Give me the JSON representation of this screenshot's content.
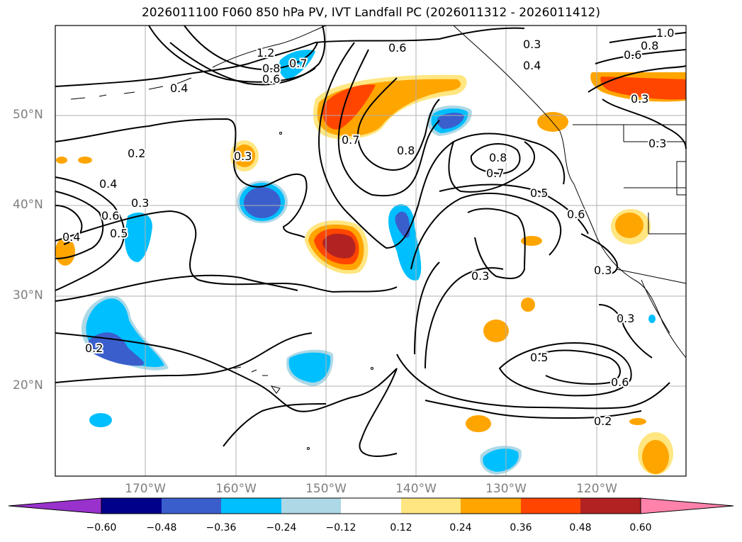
{
  "title": "2026011100 F060 850 hPa PV, IVT Landfall PC (2026011312 - 2026011412)",
  "axes": {
    "lat_labels": [
      "50°N",
      "40°N",
      "30°N",
      "20°N"
    ],
    "lon_labels": [
      "170°W",
      "160°W",
      "150°W",
      "140°W",
      "130°W",
      "120°W"
    ]
  },
  "colorbar": {
    "ticks": [
      "−0.60",
      "−0.48",
      "−0.36",
      "−0.24",
      "−0.12",
      "0.12",
      "0.24",
      "0.36",
      "0.48",
      "0.60"
    ],
    "colors": [
      "#9932cc",
      "#00008b",
      "#3a5fcd",
      "#00bfff",
      "#add8e6",
      "#ffffff",
      "#ffe680",
      "#ffa500",
      "#ff4500",
      "#b22222",
      "#ff82ab"
    ]
  },
  "contour_labels": [
    "0.6",
    "0.3",
    "0.4",
    "0.4",
    "0.2",
    "0.3",
    "0.4",
    "0.3",
    "0.6",
    "0.5",
    "0.2",
    "0.7",
    "0.8",
    "0.8",
    "0.7",
    "0.5",
    "0.6",
    "0.3",
    "0.3",
    "0.3",
    "0.5",
    "0.6",
    "0.2",
    "0.3",
    "0.3",
    "1.0",
    "0.8",
    "0.6",
    "0.7",
    "1.2",
    "0.4",
    "0.6",
    "0.8"
  ],
  "colors": {
    "pos_light": "#ffe680",
    "pos": "#ffa500",
    "pos_strong": "#ff4500",
    "pos_max": "#b22222",
    "neg_light": "#add8e6",
    "neg": "#00bfff",
    "neg_strong": "#3a5fcd"
  }
}
